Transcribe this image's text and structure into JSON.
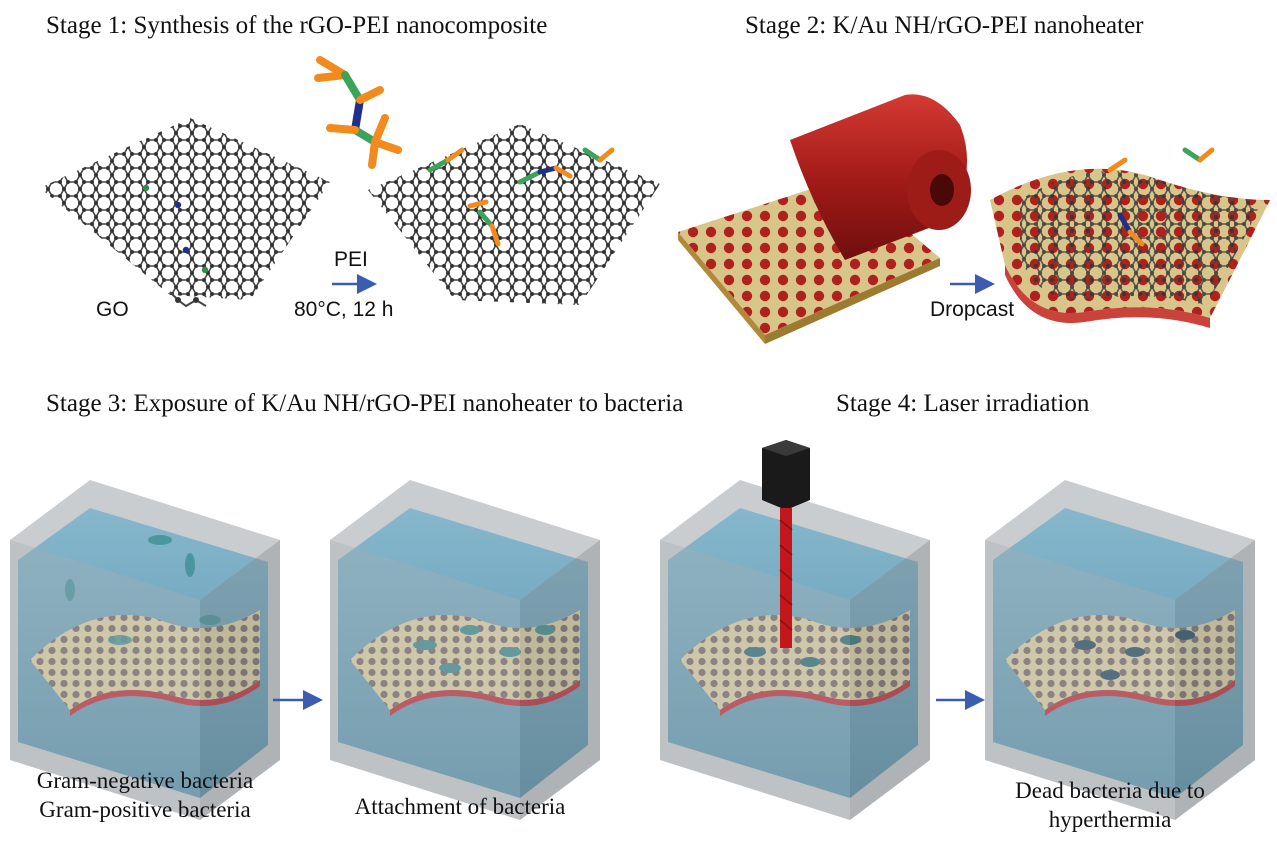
{
  "stages": [
    {
      "title": "Stage 1: Synthesis of the rGO-PEI nanocomposite"
    },
    {
      "title": "Stage 2: K/Au NH/rGO-PEI nanoheater"
    },
    {
      "title": "Stage 3: Exposure of K/Au NH/rGO-PEI nanoheater to bacteria"
    },
    {
      "title": "Stage 4: Laser irradiation"
    }
  ],
  "stage1": {
    "go_label": "GO",
    "reagent_label": "PEI",
    "condition_label": "80°C, 12 h"
  },
  "stage2": {
    "step_label": "Dropcast"
  },
  "captions": {
    "bacteria_line1": "Gram-negative bacteria",
    "bacteria_line2": "Gram-positive bacteria",
    "attachment": "Attachment of bacteria",
    "dead_line1": "Dead bacteria due to",
    "dead_line2": "hyperthermia"
  },
  "colors": {
    "arrow": "#3a5db0",
    "graphene": "#4a4a4a",
    "pei_orange": "#f28a1e",
    "pei_green": "#3ba35a",
    "pei_blue": "#1f2f8a",
    "substrate_gold": "#d8c58a",
    "film_red": "#b0211e",
    "water": "#6fa6bf",
    "box_gray": "#8c9296",
    "laser_red": "#c4171b",
    "laser_head": "#1a1a1a",
    "bacteria": "#3f8f94"
  }
}
